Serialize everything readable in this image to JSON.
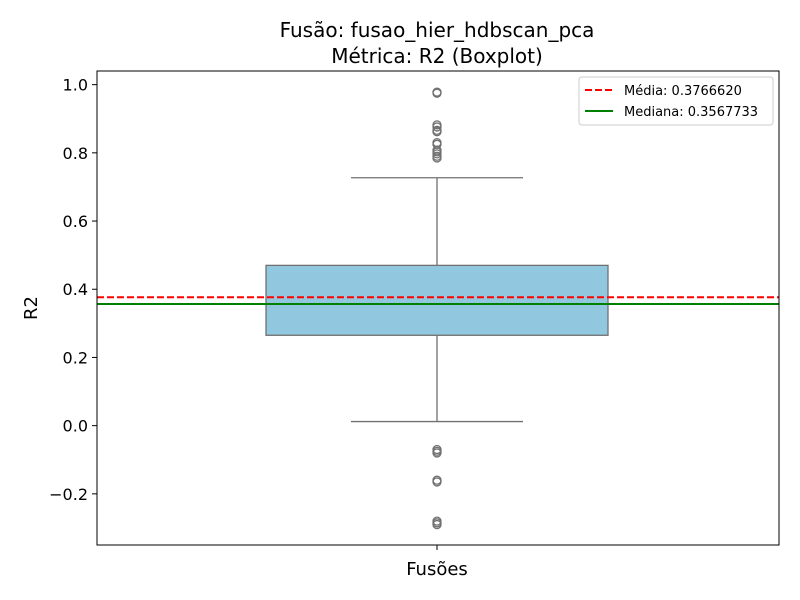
{
  "chart_data": {
    "type": "box",
    "title": "Fusão: fusao_hier_hdbscan_pca",
    "subtitle": "Métrica: R2 (Boxplot)",
    "xlabel": "Fusões",
    "ylabel": "R2",
    "ylim": [
      -0.35,
      1.04
    ],
    "yticks": [
      -0.2,
      0.0,
      0.2,
      0.4,
      0.6,
      0.8,
      1.0
    ],
    "ytick_labels": [
      "−0.2",
      "0.0",
      "0.2",
      "0.4",
      "0.6",
      "0.8",
      "1.0"
    ],
    "grid": false,
    "legend_position": "top-right",
    "box": {
      "q1": 0.265,
      "median": 0.3567733,
      "q3": 0.47,
      "whisker_low": 0.012,
      "whisker_high": 0.727,
      "fill_color": "#92c8df",
      "edge_color": "#707070"
    },
    "outliers": [
      0.978,
      0.975,
      0.882,
      0.876,
      0.866,
      0.862,
      0.83,
      0.825,
      0.808,
      0.803,
      0.797,
      0.79,
      0.785,
      -0.07,
      -0.075,
      -0.08,
      -0.16,
      -0.165,
      -0.28,
      -0.285,
      -0.29
    ],
    "reference_lines": [
      {
        "label": "Média: 0.3766620",
        "value": 0.376662,
        "color": "#ff0000",
        "style": "dashed"
      },
      {
        "label": "Mediana: 0.3567733",
        "value": 0.3567733,
        "color": "#008000",
        "style": "solid"
      }
    ]
  }
}
